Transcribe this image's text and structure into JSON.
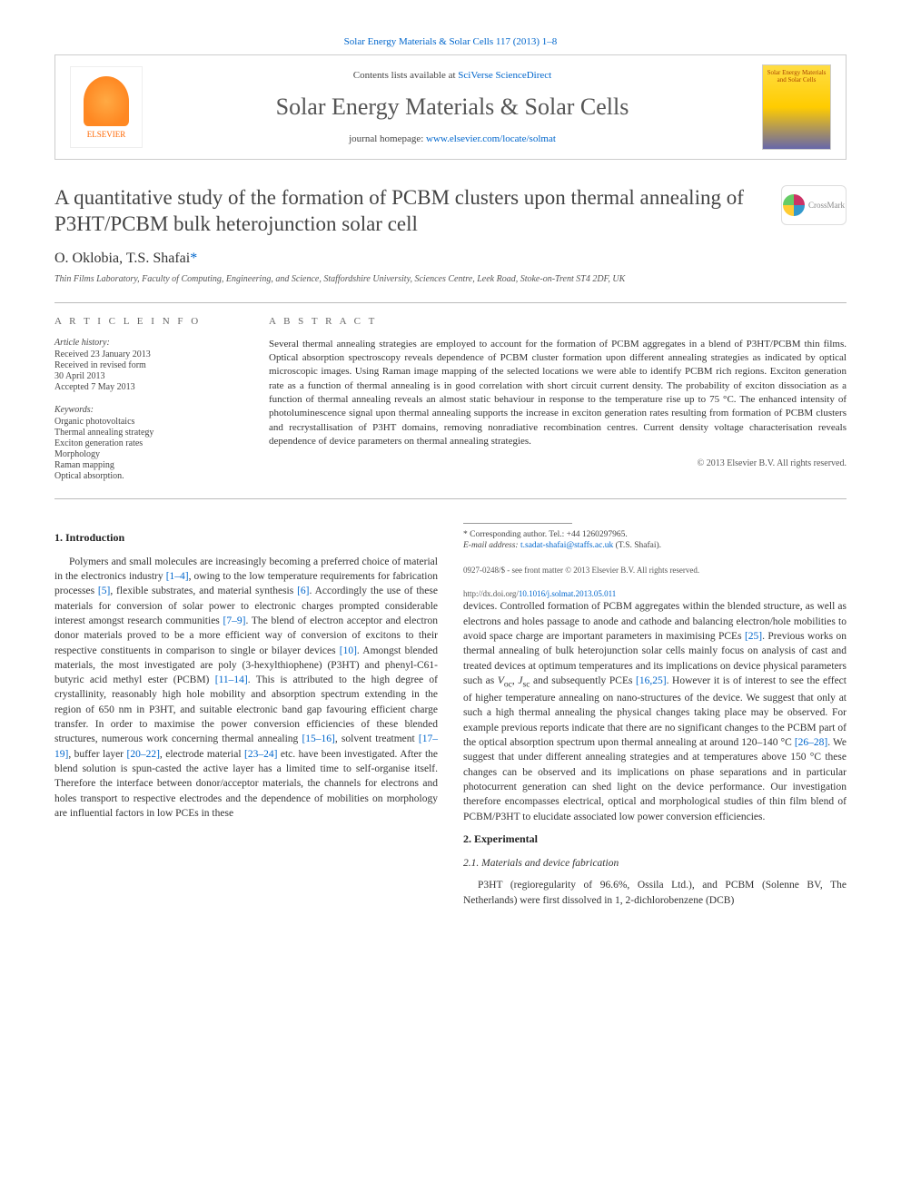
{
  "top_link": "Solar Energy Materials & Solar Cells 117 (2013) 1–8",
  "header": {
    "publisher_logo_label": "ELSEVIER",
    "contents_prefix": "Contents lists available at ",
    "contents_link": "SciVerse ScienceDirect",
    "journal_name": "Solar Energy Materials & Solar Cells",
    "homepage_prefix": "journal homepage: ",
    "homepage_link": "www.elsevier.com/locate/solmat",
    "cover_text": "Solar Energy Materials and Solar Cells"
  },
  "title": "A quantitative study of the formation of PCBM clusters upon thermal annealing of P3HT/PCBM bulk heterojunction solar cell",
  "crossmark": "CrossMark",
  "authors": {
    "a1": "O. Oklobia",
    "a2": "T.S. Shafai",
    "corr_marker": "*"
  },
  "affiliation": "Thin Films Laboratory, Faculty of Computing, Engineering, and Science, Staffordshire University, Sciences Centre, Leek Road, Stoke-on-Trent ST4 2DF, UK",
  "article_info": {
    "heading": "A R T I C L E  I N F O",
    "history_label": "Article history:",
    "h1": "Received 23 January 2013",
    "h2": "Received in revised form",
    "h3": "30 April 2013",
    "h4": "Accepted 7 May 2013",
    "keywords_label": "Keywords:",
    "k1": "Organic photovoltaics",
    "k2": "Thermal annealing strategy",
    "k3": "Exciton generation rates",
    "k4": "Morphology",
    "k5": "Raman mapping",
    "k6": "Optical absorption."
  },
  "abstract": {
    "heading": "A B S T R A C T",
    "text": "Several thermal annealing strategies are employed to account for the formation of PCBM aggregates in a blend of P3HT/PCBM thin films. Optical absorption spectroscopy reveals dependence of PCBM cluster formation upon different annealing strategies as indicated by optical microscopic images. Using Raman image mapping of the selected locations we were able to identify PCBM rich regions. Exciton generation rate as a function of thermal annealing is in good correlation with short circuit current density. The probability of exciton dissociation as a function of thermal annealing reveals an almost static behaviour in response to the temperature rise up to 75 °C. The enhanced intensity of photoluminescence signal upon thermal annealing supports the increase in exciton generation rates resulting from formation of PCBM clusters and recrystallisation of P3HT domains, removing nonradiative recombination centres. Current density voltage characterisation reveals dependence of device parameters on thermal annealing strategies.",
    "copyright": "© 2013 Elsevier B.V. All rights reserved."
  },
  "sections": {
    "s1_heading": "1.  Introduction",
    "s1_p1a": "Polymers and small molecules are increasingly becoming a preferred choice of material in the electronics industry ",
    "s1_r1": "[1–4]",
    "s1_p1b": ", owing to the low temperature requirements for fabrication processes ",
    "s1_r2": "[5]",
    "s1_p1c": ", flexible substrates, and material synthesis ",
    "s1_r3": "[6]",
    "s1_p1d": ". Accordingly the use of these materials for conversion of solar power to electronic charges prompted considerable interest amongst research communities ",
    "s1_r4": "[7–9]",
    "s1_p1e": ". The blend of electron acceptor and electron donor materials proved to be a more efficient way of conversion of excitons to their respective constituents in comparison to single or bilayer devices ",
    "s1_r5": "[10]",
    "s1_p1f": ". Amongst blended materials, the most investigated are poly (3-hexylthiophene) (P3HT) and phenyl-C61-butyric acid methyl ester (PCBM) ",
    "s1_r6": "[11–14]",
    "s1_p1g": ". This is attributed to the high degree of crystallinity, reasonably high hole mobility and absorption spectrum extending in the region of 650 nm in P3HT, and suitable electronic band gap favouring efficient charge transfer. In order to maximise the power conversion efficiencies of these blended structures, numerous work concerning thermal annealing ",
    "s1_r7": "[15–16]",
    "s1_p1h": ", solvent treatment ",
    "s1_r8": "[17–19]",
    "s1_p1i": ", buffer layer ",
    "s1_r9": "[20–22]",
    "s1_p1j": ", electrode material ",
    "s1_r10": "[23–24]",
    "s1_p1k": " etc. have been investigated. After the blend solution is spun-casted the active layer has a limited time to self-organise itself. Therefore the interface between donor/acceptor materials, the channels for electrons and holes transport to respective electrodes and the dependence of mobilities on morphology are influential factors in low PCEs in these ",
    "s1_p2a": "devices. Controlled formation of PCBM aggregates within the blended structure, as well as electrons and holes passage to anode and cathode and balancing electron/hole mobilities to avoid space charge are important parameters in maximising PCEs ",
    "s1_r11": "[25]",
    "s1_p2b": ". Previous works on thermal annealing of bulk heterojunction solar cells mainly focus on analysis of cast and treated devices at optimum temperatures and its implications on device physical parameters such as ",
    "s1_voc": "V",
    "s1_voc_sub": "oc",
    "s1_p2c": ", ",
    "s1_jsc": "J",
    "s1_jsc_sub": "sc",
    "s1_p2d": " and subsequently PCEs ",
    "s1_r12": "[16,25]",
    "s1_p2e": ". However it is of interest to see the effect of higher temperature annealing on nano-structures of the device. We suggest that only at such a high thermal annealing the physical changes taking place may be observed. For example previous reports indicate that there are no significant changes to the PCBM part of the optical absorption spectrum upon thermal annealing at around 120–140 °C ",
    "s1_r13": "[26–28]",
    "s1_p2f": ". We suggest that under different annealing strategies and at temperatures above 150 °C these changes can be observed and its implications on phase separations and in particular photocurrent generation can shed light on the device performance. Our investigation therefore encompasses electrical, optical and morphological studies of thin film blend of PCBM/P3HT to elucidate associated low power conversion efficiencies.",
    "s2_heading": "2.  Experimental",
    "s21_heading": "2.1.  Materials and device fabrication",
    "s21_p1": "P3HT (regioregularity of 96.6%, Ossila Ltd.), and PCBM (Solenne BV, The Netherlands) were first dissolved in 1, 2-dichlorobenzene (DCB)"
  },
  "footnote": {
    "corr_label": "* Corresponding author. Tel.: +44 1260297965.",
    "email_label": "E-mail address: ",
    "email": "t.sadat-shafai@staffs.ac.uk",
    "email_suffix": " (T.S. Shafai)."
  },
  "bottom": {
    "issn_line": "0927-0248/$ - see front matter © 2013 Elsevier B.V. All rights reserved.",
    "doi_label": "http://dx.doi.org/",
    "doi": "10.1016/j.solmat.2013.05.011"
  },
  "colors": {
    "link": "#0066cc",
    "rule": "#bbbbbb",
    "elsevier": "#ff6600"
  }
}
